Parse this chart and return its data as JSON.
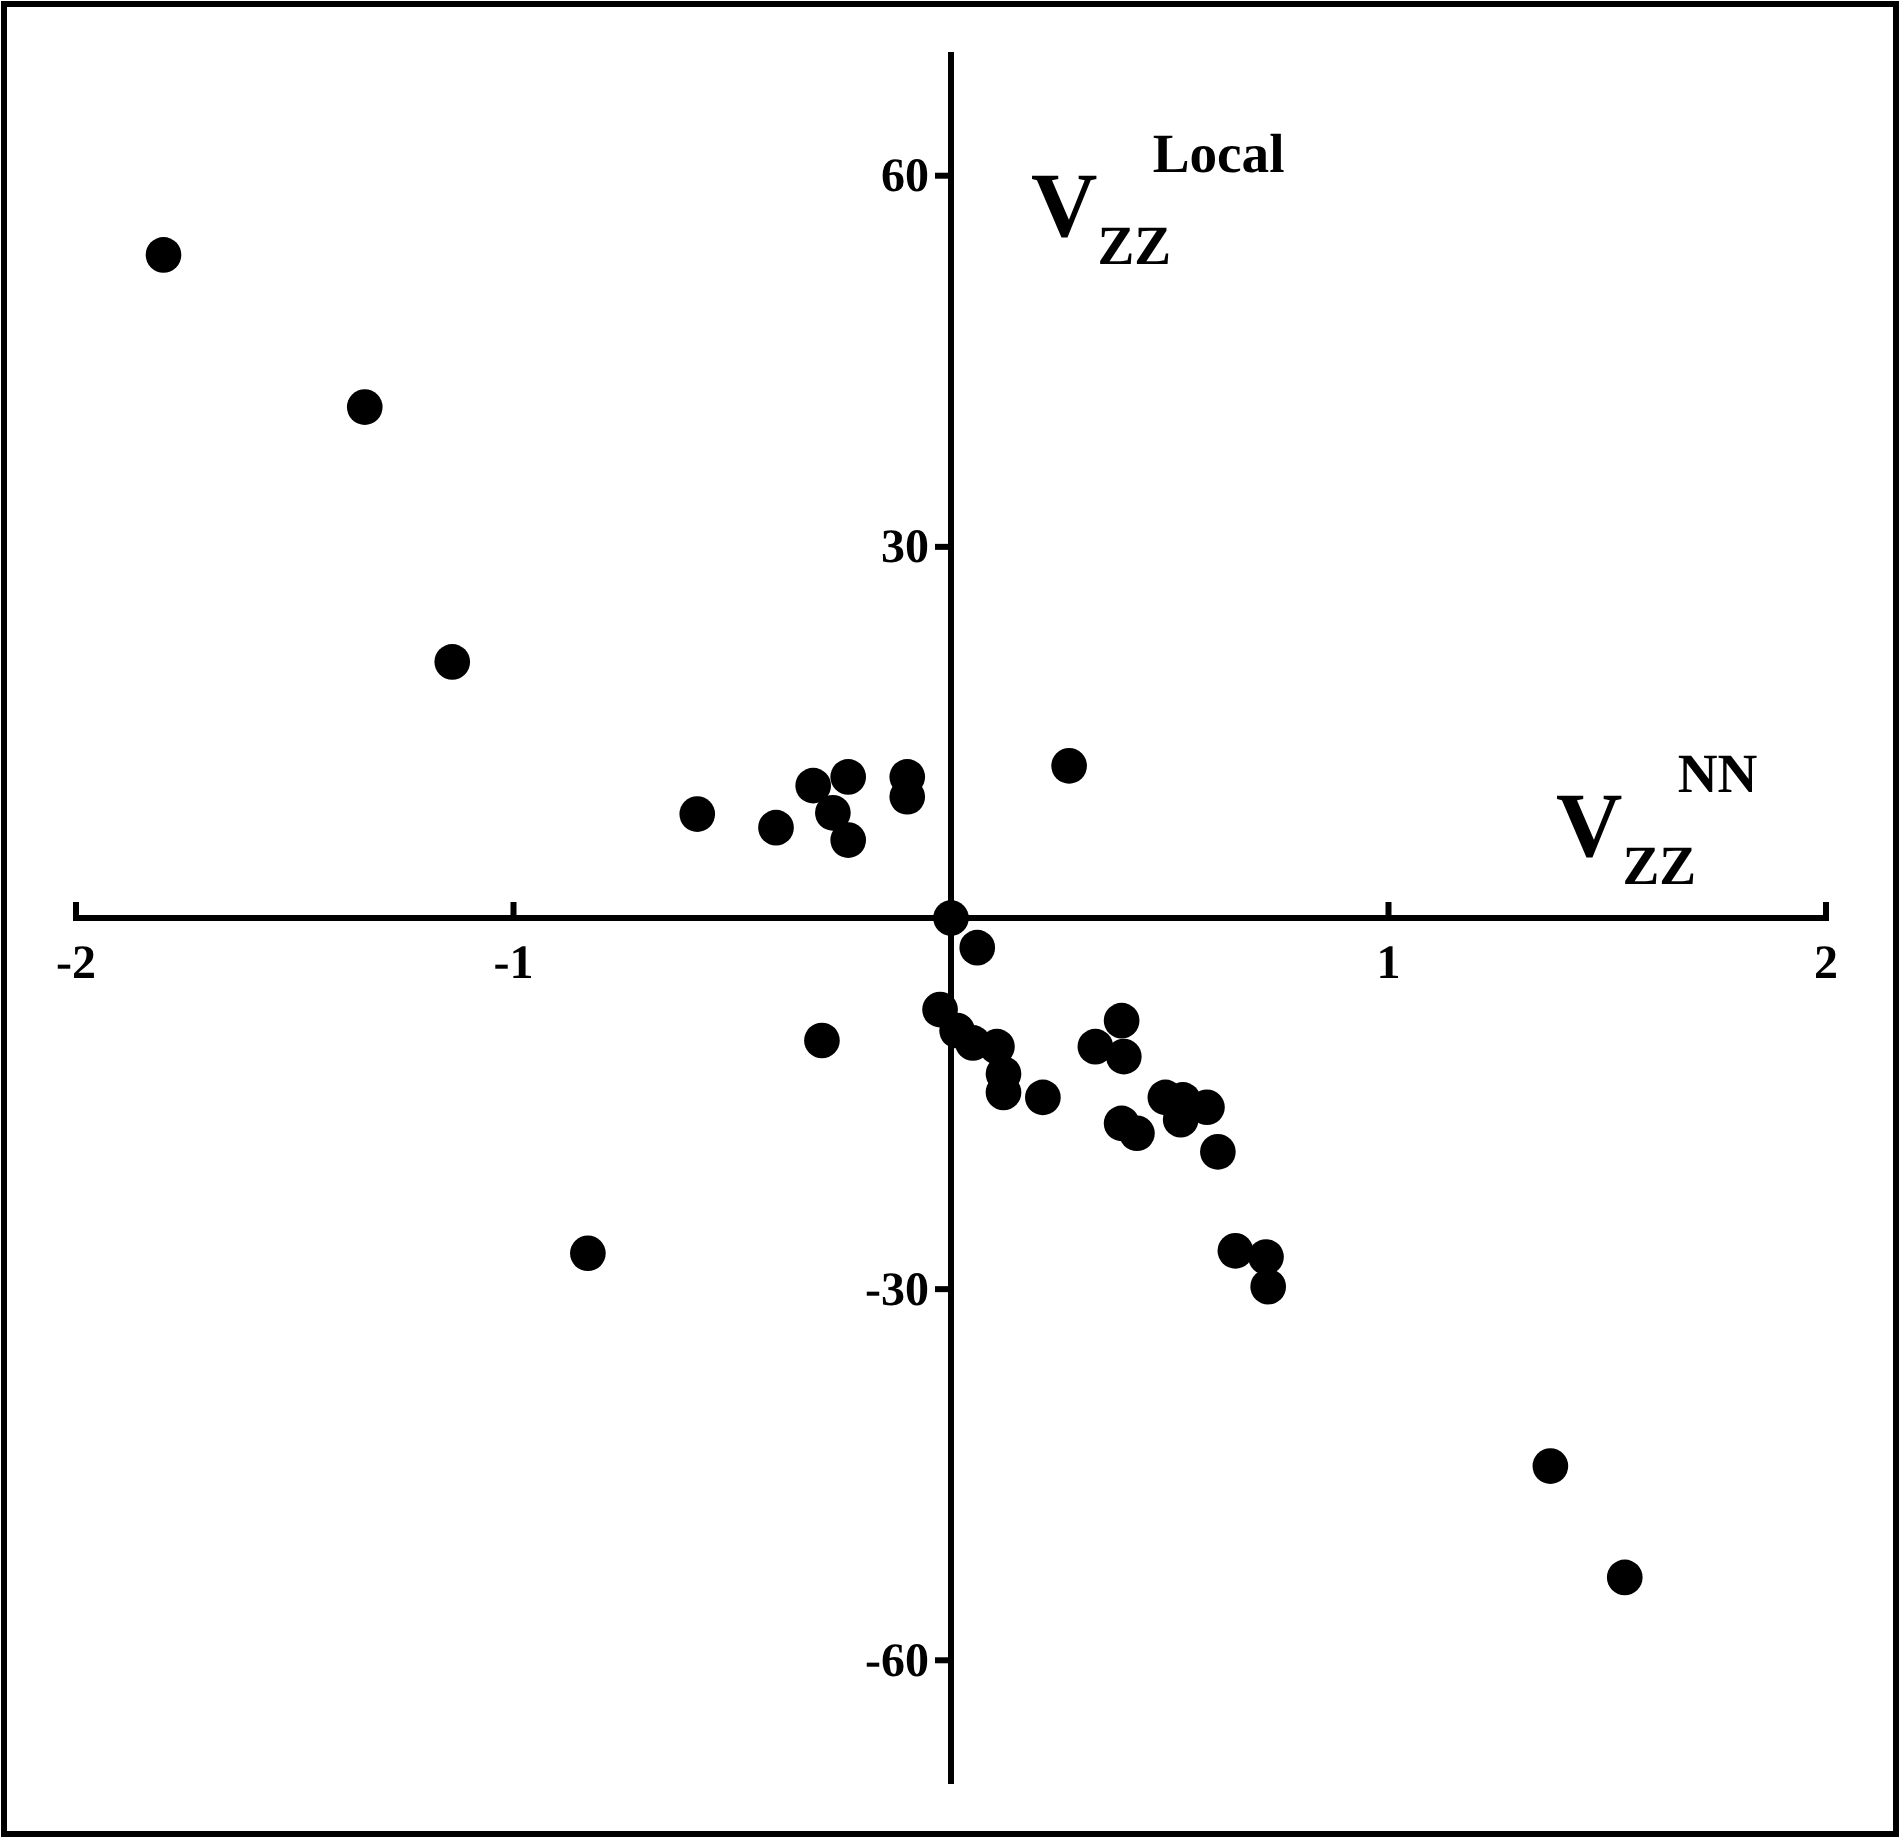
{
  "chart_data": {
    "type": "scatter",
    "xlabel": "V$_{ZZ}$$^{NN}$",
    "ylabel": "V$_{ZZ}$$^{Local}$",
    "xlim": [
      -2,
      2
    ],
    "ylim": [
      -70,
      70
    ],
    "xticks": [
      -2,
      -1,
      1,
      2
    ],
    "yticks": [
      60,
      30,
      -30,
      -60
    ],
    "marker": "circle",
    "grid": false,
    "series": [
      {
        "color": "#000000",
        "x": [
          -1.8,
          -1.34,
          -1.14,
          -0.58,
          -0.4,
          -0.315,
          -0.235,
          -0.27,
          -0.235,
          -0.1,
          -0.1,
          0.27,
          0,
          0.06,
          -0.025,
          0.014,
          0.05,
          0.105,
          0.12,
          0.12,
          0.21,
          0.39,
          0.33,
          0.395,
          0.49,
          0.53,
          0.585,
          0.525,
          0.39,
          0.425,
          0.61,
          0.65,
          0.72,
          0.725,
          -0.295,
          -0.83,
          1.37,
          1.54
        ],
        "values": [
          53.6,
          41.3,
          20.7,
          8.4,
          7.3,
          10.7,
          11.4,
          8.5,
          6.3,
          11.4,
          9.8,
          12.3,
          0,
          -2.4,
          -7.4,
          -9.1,
          -10.1,
          -10.4,
          -12.6,
          -14.1,
          -14.5,
          -8.3,
          -10.4,
          -11.2,
          -14.5,
          -14.7,
          -15.3,
          -16.3,
          -16.6,
          -17.4,
          -18.9,
          -26.9,
          -27.4,
          -29.8,
          -9.9,
          -27.1,
          -44.3,
          -53.3
        ]
      }
    ]
  }
}
